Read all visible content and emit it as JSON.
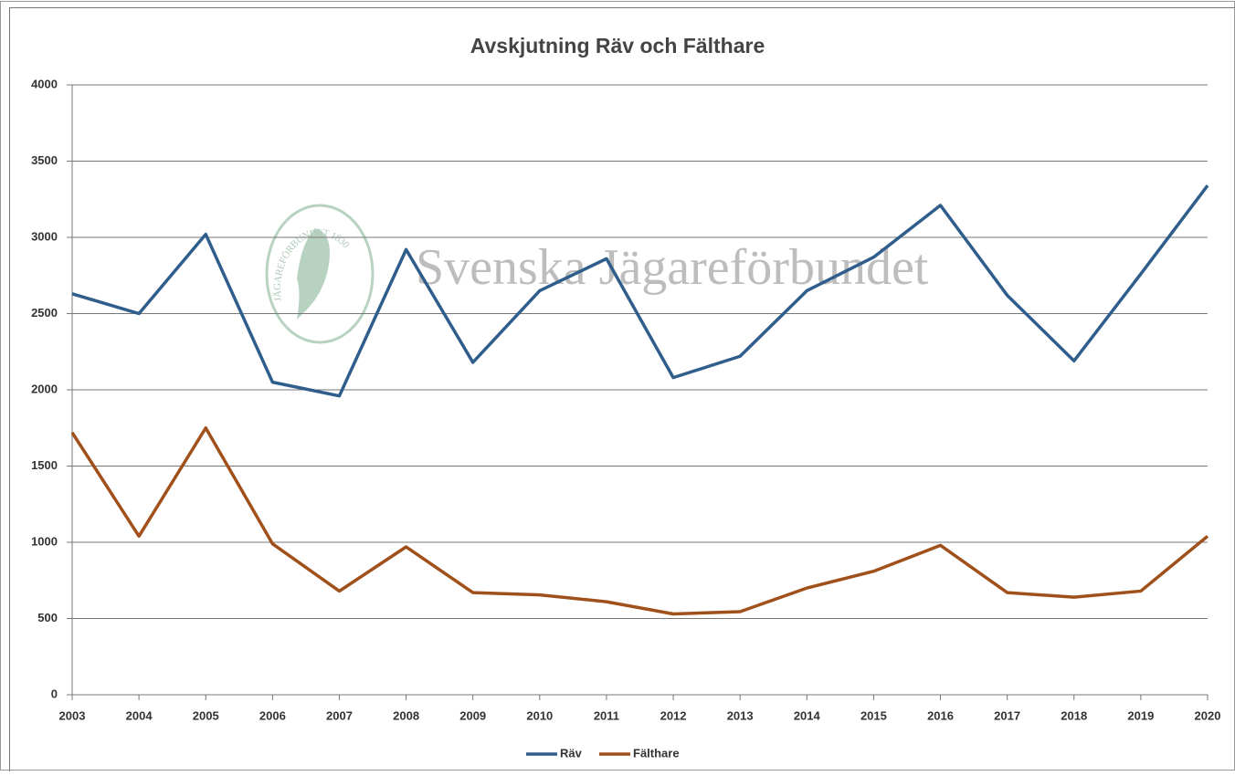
{
  "chart_data": {
    "type": "line",
    "title": "Avskjutning Räv och Fälthare",
    "watermark": "Svenska Jägareförbundet",
    "watermark_logo_text": "JÄGAREFÖRBUNDET 1830",
    "categories": [
      "2003",
      "2004",
      "2005",
      "2006",
      "2007",
      "2008",
      "2009",
      "2010",
      "2011",
      "2012",
      "2013",
      "2014",
      "2015",
      "2016",
      "2017",
      "2018",
      "2019",
      "2020"
    ],
    "series": [
      {
        "name": "Räv",
        "color": "#2f5d8c",
        "values": [
          2630,
          2500,
          3020,
          2050,
          1960,
          2920,
          2180,
          2650,
          2860,
          2080,
          2220,
          2650,
          2870,
          3210,
          2620,
          2190,
          2760,
          3340
        ]
      },
      {
        "name": "Fälthare",
        "color": "#a0501a",
        "values": [
          1720,
          1040,
          1750,
          990,
          680,
          970,
          670,
          655,
          610,
          530,
          545,
          700,
          810,
          980,
          670,
          640,
          680,
          1040
        ]
      }
    ],
    "ylim": [
      0,
      4000
    ],
    "yticks": [
      0,
      500,
      1000,
      1500,
      2000,
      2500,
      3000,
      3500,
      4000
    ],
    "grid": true,
    "legend": "bottom"
  }
}
